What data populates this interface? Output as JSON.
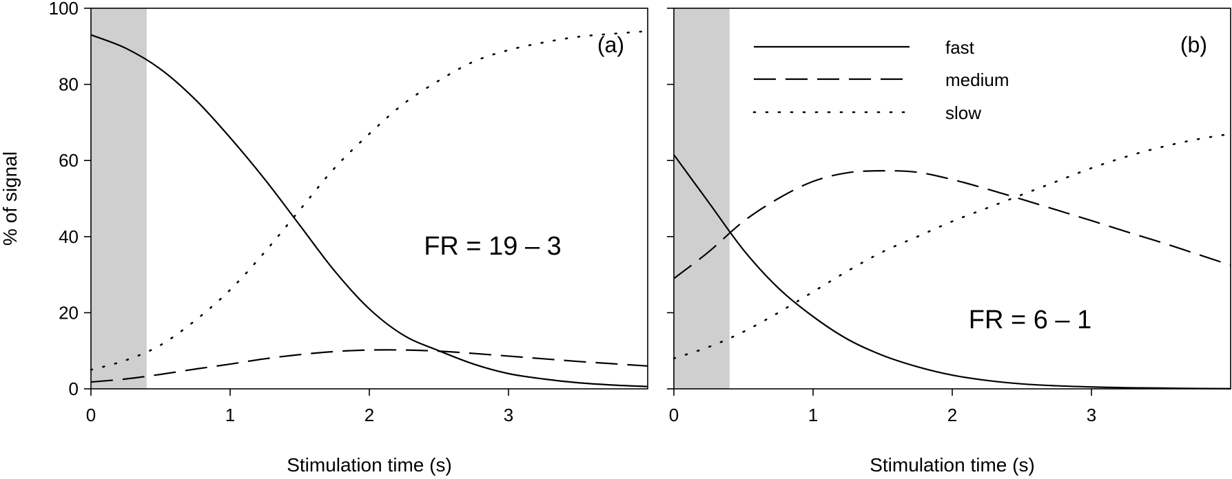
{
  "chart_data": [
    {
      "type": "line",
      "panel_label": "(a)",
      "annotation": "FR = 19 – 3",
      "xlabel": "Stimulation time (s)",
      "ylabel": "% of signal",
      "xlim": [
        0,
        4
      ],
      "ylim": [
        0,
        100
      ],
      "xticks": [
        0,
        1,
        2,
        3
      ],
      "yticks": [
        0,
        20,
        40,
        60,
        80,
        100
      ],
      "shaded_region": [
        0,
        0.4
      ],
      "x": [
        0,
        0.25,
        0.5,
        0.75,
        1,
        1.25,
        1.5,
        1.75,
        2,
        2.25,
        2.5,
        2.75,
        3,
        3.25,
        3.5,
        3.75,
        4
      ],
      "series": [
        {
          "name": "fast",
          "style": "solid",
          "values": [
            93,
            89.5,
            84,
            76,
            66,
            55,
            43,
            31,
            21,
            14,
            10,
            6.5,
            4,
            2.6,
            1.6,
            1,
            0.6
          ]
        },
        {
          "name": "medium",
          "style": "dashed",
          "values": [
            1.8,
            2.6,
            3.8,
            5.2,
            6.5,
            7.9,
            9,
            9.8,
            10.2,
            10.2,
            9.9,
            9.3,
            8.6,
            7.9,
            7.2,
            6.6,
            6
          ]
        },
        {
          "name": "slow",
          "style": "dotted",
          "values": [
            5,
            7.5,
            11.5,
            18,
            26,
            36,
            47,
            58,
            67,
            75,
            81,
            86,
            89,
            91,
            92.5,
            93.3,
            94
          ]
        }
      ]
    },
    {
      "type": "line",
      "panel_label": "(b)",
      "annotation": "FR = 6 – 1",
      "xlabel": "Stimulation time (s)",
      "ylabel": "",
      "xlim": [
        0,
        4
      ],
      "ylim": [
        0,
        100
      ],
      "xticks": [
        0,
        1,
        2,
        3
      ],
      "yticks": [
        0,
        20,
        40,
        60,
        80,
        100
      ],
      "shaded_region": [
        0,
        0.4
      ],
      "legend": {
        "position": "top-left",
        "entries": [
          "fast",
          "medium",
          "slow"
        ]
      },
      "x": [
        0,
        0.25,
        0.5,
        0.75,
        1,
        1.25,
        1.5,
        1.75,
        2,
        2.25,
        2.5,
        2.75,
        3,
        3.25,
        3.5,
        3.75,
        4
      ],
      "series": [
        {
          "name": "fast",
          "style": "solid",
          "values": [
            61.5,
            49,
            36.5,
            26.5,
            19,
            13,
            8.8,
            5.8,
            3.6,
            2.2,
            1.3,
            0.8,
            0.5,
            0.3,
            0.2,
            0.1,
            0.05
          ]
        },
        {
          "name": "medium",
          "style": "dashed",
          "values": [
            29,
            36,
            44,
            50,
            54.5,
            56.8,
            57.3,
            56.9,
            55,
            52.5,
            49.8,
            47,
            44.2,
            41.3,
            38.5,
            35.5,
            32.5
          ]
        },
        {
          "name": "slow",
          "style": "dotted",
          "values": [
            8,
            11,
            15,
            20,
            25.5,
            31,
            36,
            40,
            44,
            47.5,
            51,
            54.5,
            58,
            61,
            63.5,
            65.5,
            67
          ]
        }
      ]
    }
  ]
}
